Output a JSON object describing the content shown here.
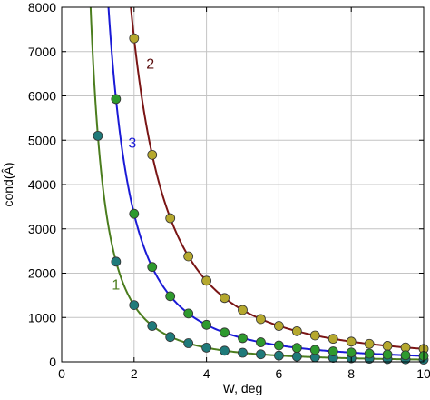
{
  "chart_data": {
    "type": "line",
    "title": "",
    "xlabel": "W, deg",
    "ylabel": "cond(Â)",
    "xlim": [
      0,
      10
    ],
    "ylim": [
      0,
      8000
    ],
    "xticks": [
      0,
      2,
      4,
      6,
      8,
      10
    ],
    "yticks": [
      0,
      1000,
      2000,
      3000,
      4000,
      5000,
      6000,
      7000,
      8000
    ],
    "grid": true,
    "legend": "none",
    "series": [
      {
        "label": "1",
        "line_color": "#4b7d1e",
        "marker_color": "#1f7a7a",
        "curve_k": 5100,
        "curve_p": 2,
        "x": [
          1.0,
          1.5,
          2.0,
          2.5,
          3.0,
          3.5,
          4.0,
          4.5,
          5.0,
          5.5,
          6.0,
          6.5,
          7.0,
          7.5,
          8.0,
          8.5,
          9.0,
          9.5,
          10.0
        ],
        "y": [
          5100,
          2260,
          1280,
          810,
          560,
          420,
          320,
          250,
          205,
          170,
          140,
          120,
          105,
          90,
          80,
          70,
          63,
          57,
          51
        ]
      },
      {
        "label": "2",
        "line_color": "#7a1515",
        "marker_color": "#b5a82e",
        "curve_k": 29200,
        "curve_p": 2,
        "x": [
          2.0,
          2.5,
          3.0,
          3.5,
          4.0,
          4.5,
          5.0,
          5.5,
          6.0,
          6.5,
          7.0,
          7.5,
          8.0,
          8.5,
          9.0,
          9.5,
          10.0
        ],
        "y": [
          7300,
          4670,
          3240,
          2380,
          1830,
          1440,
          1170,
          965,
          810,
          690,
          595,
          520,
          455,
          405,
          360,
          325,
          292
        ]
      },
      {
        "label": "3",
        "line_color": "#1a1ad6",
        "marker_color": "#2e9a2e",
        "curve_k": 13350,
        "curve_p": 2,
        "x": [
          1.5,
          2.0,
          2.5,
          3.0,
          3.5,
          4.0,
          4.5,
          5.0,
          5.5,
          6.0,
          6.5,
          7.0,
          7.5,
          8.0,
          8.5,
          9.0,
          9.5,
          10.0
        ],
        "y": [
          5930,
          3340,
          2140,
          1480,
          1090,
          835,
          660,
          535,
          440,
          370,
          315,
          270,
          235,
          210,
          185,
          165,
          148,
          134
        ]
      }
    ],
    "annotations": [
      {
        "text": "1",
        "x": 1.5,
        "y": 1630,
        "color": "#4b7d1e"
      },
      {
        "text": "2",
        "x": 2.45,
        "y": 6620,
        "color": "#5a0d0d"
      },
      {
        "text": "3",
        "x": 1.95,
        "y": 4830,
        "color": "#1a1ad6"
      }
    ]
  }
}
